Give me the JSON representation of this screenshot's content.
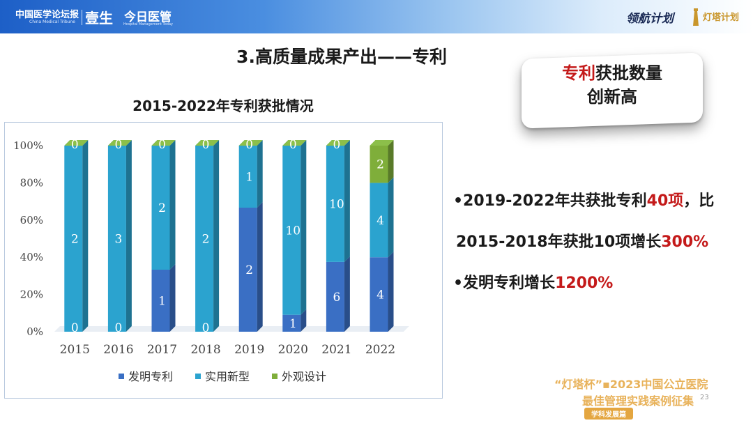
{
  "header": {
    "logo_left": "中国医学论坛报",
    "logo_left_sub": "China Medical Tribune",
    "logo_mid": "壹生",
    "logo_right": "今日医管",
    "logo_right_sub": "Hospital Management Today",
    "brand_script": "领航计划",
    "brand_right": "灯塔计划"
  },
  "page_title": "3.高质量成果产出——专利",
  "chart_data": {
    "type": "bar",
    "stacked": "percent",
    "title": "2015-2022年专利获批情况",
    "categories": [
      "2015",
      "2016",
      "2017",
      "2018",
      "2019",
      "2020",
      "2021",
      "2022"
    ],
    "series": [
      {
        "name": "发明专利",
        "values": [
          0,
          0,
          1,
          0,
          2,
          1,
          6,
          4
        ],
        "color": "#3a6fc4"
      },
      {
        "name": "实用新型",
        "values": [
          2,
          3,
          2,
          2,
          1,
          10,
          10,
          4
        ],
        "color": "#2ba3cf"
      },
      {
        "name": "外观设计",
        "values": [
          0,
          0,
          0,
          0,
          0,
          0,
          0,
          2
        ],
        "color": "#7fae3a"
      }
    ],
    "y_ticks": [
      "0%",
      "20%",
      "40%",
      "60%",
      "80%",
      "100%"
    ],
    "ylim": [
      0,
      100
    ],
    "legend_position": "bottom"
  },
  "badge": {
    "line1_red": "专利",
    "line1_rest": "获批数量",
    "line2": "创新高"
  },
  "bullets": {
    "b1_prefix": "•2019-2022年共获批专利",
    "b1_red": "40项",
    "b1_suffix": "，比",
    "b2_prefix": "2015-2018年获批10项增长",
    "b2_red": "300%",
    "b3_prefix": "•发明专利增长",
    "b3_red": "1200%"
  },
  "footer": {
    "line1": "“灯塔杯”▪2023中国公立医院",
    "line2": "最佳管理实践案例征集",
    "tag": "学科发展篇",
    "page_number": "23"
  }
}
